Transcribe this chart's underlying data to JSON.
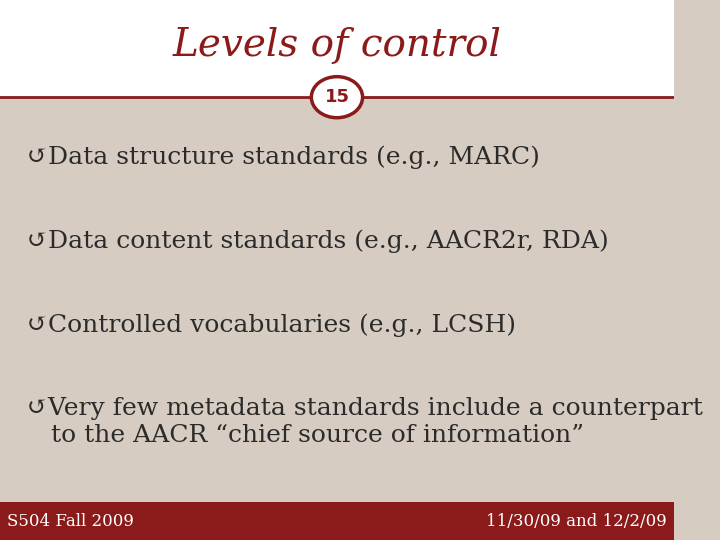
{
  "title": "Levels of control",
  "slide_number": "15",
  "bg_color": "#d6ccc2",
  "title_color": "#8b1a1a",
  "title_bg": "#ffffff",
  "text_color": "#2b2b2b",
  "footer_bg": "#8b1a1a",
  "footer_left": "S504 Fall 2009",
  "footer_right": "11/30/09 and 12/2/09",
  "footer_text_color": "#ffffff",
  "circle_color": "#8b1a1a",
  "circle_fill": "#ffffff",
  "circle_text_color": "#8b1a1a",
  "divider_color": "#8b1a1a",
  "bullet_items": [
    "Data structure standards (e.g., MARC)",
    "Data content standards (e.g., AACR2r, RDA)",
    "Controlled vocabularies (e.g., LCSH)",
    "Very few metadata standards include a counterpart\n   to the AACR “chief source of information”"
  ],
  "bullet_symbol": "↺",
  "title_fontsize": 28,
  "bullet_fontsize": 18,
  "footer_fontsize": 12,
  "slide_num_fontsize": 13
}
